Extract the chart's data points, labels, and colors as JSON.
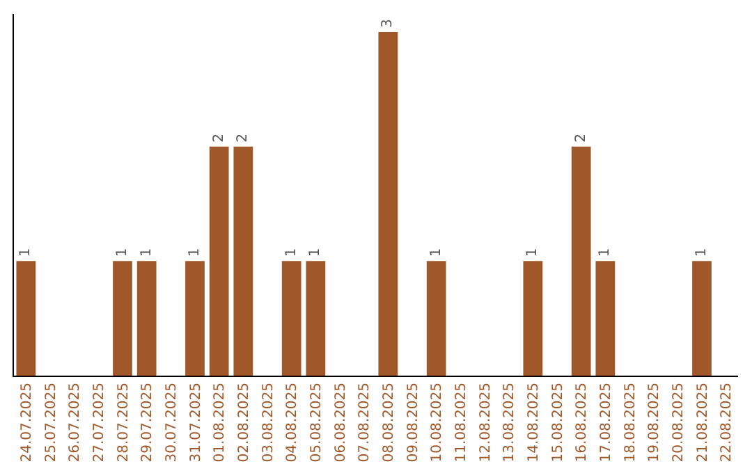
{
  "chart_data": {
    "type": "bar",
    "categories": [
      "24.07.2025",
      "25.07.2025",
      "26.07.2025",
      "27.07.2025",
      "28.07.2025",
      "29.07.2025",
      "30.07.2025",
      "31.07.2025",
      "01.08.2025",
      "02.08.2025",
      "03.08.2025",
      "04.08.2025",
      "05.08.2025",
      "06.08.2025",
      "07.08.2025",
      "08.08.2025",
      "09.08.2025",
      "10.08.2025",
      "11.08.2025",
      "12.08.2025",
      "13.08.2025",
      "14.08.2025",
      "15.08.2025",
      "16.08.2025",
      "17.08.2025",
      "18.08.2025",
      "19.08.2025",
      "20.08.2025",
      "21.08.2025",
      "22.08.2025"
    ],
    "values": [
      1,
      0,
      0,
      0,
      1,
      1,
      0,
      1,
      2,
      2,
      0,
      1,
      1,
      0,
      0,
      3,
      0,
      1,
      0,
      0,
      0,
      1,
      0,
      2,
      1,
      0,
      0,
      0,
      1,
      0
    ],
    "value_labels": [
      "1",
      null,
      null,
      null,
      "1",
      "1",
      null,
      "1",
      "2",
      "2",
      null,
      "1",
      "1",
      null,
      null,
      "3",
      null,
      "1",
      null,
      null,
      null,
      "1",
      null,
      "2",
      "1",
      null,
      null,
      null,
      "1",
      null
    ],
    "color": "#a0582a",
    "tick_labels": "x",
    "grid": false,
    "legend": false
  }
}
